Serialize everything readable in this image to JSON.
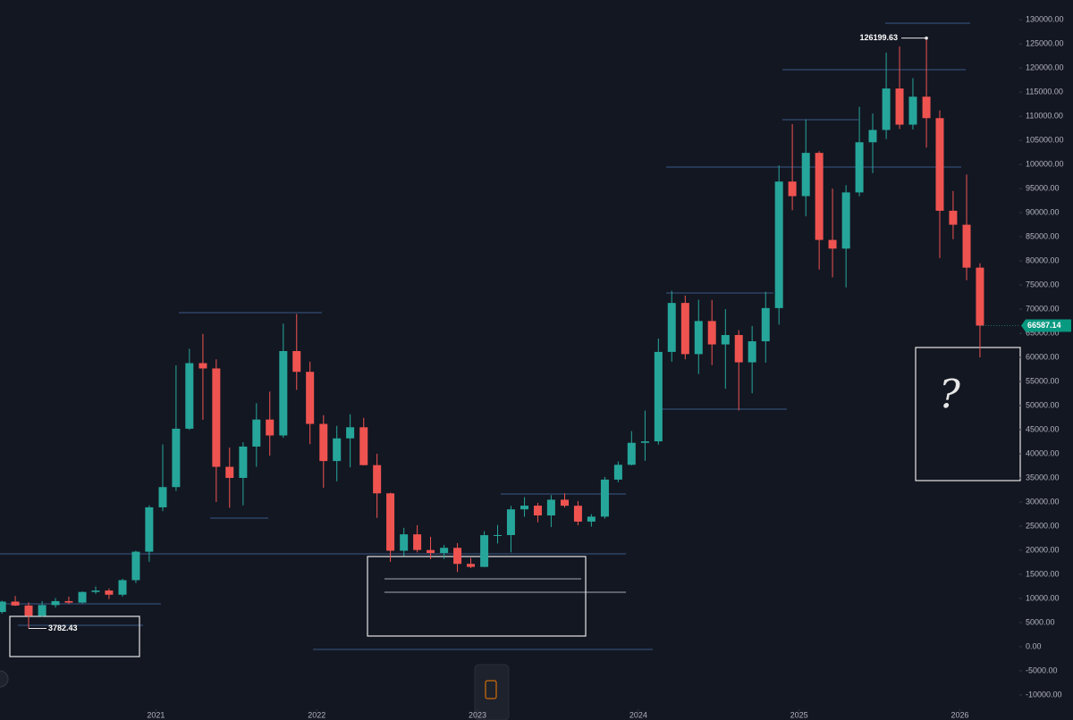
{
  "chart_data": {
    "type": "candlestick",
    "x": [
      2020.042,
      2020.125,
      2020.208,
      2020.292,
      2020.375,
      2020.458,
      2020.542,
      2020.625,
      2020.708,
      2020.792,
      2020.875,
      2020.958,
      2021.042,
      2021.125,
      2021.208,
      2021.292,
      2021.375,
      2021.458,
      2021.542,
      2021.625,
      2021.708,
      2021.792,
      2021.875,
      2021.958,
      2022.042,
      2022.125,
      2022.208,
      2022.292,
      2022.375,
      2022.458,
      2022.542,
      2022.625,
      2022.708,
      2022.792,
      2022.875,
      2022.958,
      2023.042,
      2023.125,
      2023.208,
      2023.292,
      2023.375,
      2023.458,
      2023.542,
      2023.625,
      2023.708,
      2023.792,
      2023.875,
      2023.958,
      2024.042,
      2024.125,
      2024.208,
      2024.292,
      2024.375,
      2024.458,
      2024.542,
      2024.625,
      2024.708,
      2024.792,
      2024.875,
      2024.958,
      2025.042,
      2025.125,
      2025.208,
      2025.292,
      2025.375,
      2025.458,
      2025.542,
      2025.625,
      2025.708,
      2025.792,
      2025.875,
      2025.958,
      2026.042,
      2026.125
    ],
    "open": [
      7200,
      9350,
      8540,
      6410,
      8630,
      9450,
      9140,
      11350,
      11650,
      10780,
      13800,
      19700,
      28900,
      33100,
      45200,
      58800,
      57700,
      37300,
      35000,
      41500,
      47100,
      43800,
      61300,
      57000,
      46200,
      38500,
      43200,
      45500,
      37650,
      31800,
      19900,
      23300,
      20050,
      19430,
      20500,
      17170,
      16550,
      23130,
      23150,
      28480,
      29250,
      27220,
      30480,
      29230,
      25940,
      26970,
      34650,
      37720,
      42280,
      42580,
      61130,
      71280,
      60670,
      67530,
      62680,
      64630,
      58970,
      63330,
      70220,
      96450,
      93430,
      102400,
      84350,
      82550,
      94200,
      104600,
      107150,
      115750,
      108250,
      114050,
      109600,
      90400,
      87500,
      78600
    ],
    "high": [
      9570,
      10500,
      9190,
      9460,
      10070,
      10380,
      11450,
      12480,
      12080,
      14100,
      19900,
      29300,
      41950,
      58350,
      61790,
      64850,
      59600,
      41300,
      42400,
      50500,
      52900,
      67000,
      69000,
      59100,
      48000,
      45800,
      48200,
      47450,
      40000,
      31950,
      24650,
      25200,
      22800,
      21100,
      21480,
      18400,
      23950,
      25250,
      29200,
      31000,
      29820,
      31430,
      31800,
      30200,
      27480,
      35200,
      38420,
      44700,
      48970,
      63900,
      73800,
      72800,
      71950,
      71900,
      70000,
      65650,
      66500,
      73600,
      99800,
      108350,
      109350,
      102750,
      95000,
      95700,
      111950,
      110550,
      123200,
      124450,
      117900,
      126199.63,
      111200,
      94500,
      97900,
      79500
    ],
    "low": [
      6850,
      8450,
      3782.43,
      6150,
      8110,
      8900,
      8980,
      10950,
      9880,
      10370,
      13200,
      17600,
      28100,
      32300,
      44950,
      47050,
      30000,
      28800,
      29300,
      37300,
      39600,
      43300,
      53250,
      42000,
      32950,
      34300,
      37200,
      37600,
      26700,
      17600,
      18800,
      19550,
      18150,
      18200,
      15480,
      16300,
      16500,
      21400,
      19550,
      26950,
      25810,
      24800,
      28860,
      25170,
      24900,
      26560,
      34100,
      37600,
      38550,
      41900,
      59100,
      59600,
      56550,
      58400,
      53500,
      49000,
      52550,
      58900,
      66800,
      90500,
      89250,
      78200,
      76600,
      74500,
      93400,
      98200,
      105250,
      107350,
      107250,
      103500,
      80600,
      84500,
      76000,
      60000
    ],
    "close": [
      9350,
      8540,
      6410,
      8630,
      9450,
      9140,
      11350,
      11650,
      10780,
      13800,
      19700,
      28900,
      33100,
      45200,
      58800,
      57700,
      37300,
      35000,
      41500,
      47100,
      43800,
      61300,
      57000,
      46200,
      38500,
      43200,
      45500,
      37650,
      31800,
      19900,
      23300,
      20050,
      19430,
      20500,
      17170,
      16550,
      23130,
      23150,
      28480,
      29250,
      27220,
      30480,
      29230,
      25940,
      26970,
      34650,
      37720,
      42280,
      42580,
      61130,
      71280,
      60670,
      67530,
      62680,
      64630,
      58970,
      63330,
      70220,
      96450,
      93430,
      102400,
      84350,
      82550,
      94200,
      104600,
      107150,
      115750,
      108250,
      114050,
      109600,
      90400,
      87500,
      78600,
      66587.14
    ],
    "up_color": "#26a69a",
    "down_color": "#ef5350",
    "xlim": [
      2020.03,
      2026.37
    ],
    "xticks": [
      2021,
      2022,
      2023,
      2024,
      2025,
      2026
    ],
    "ylim": [
      -15200,
      134100
    ],
    "yticks": [
      {
        "value": -10000,
        "label": "-10000.00"
      },
      {
        "value": -5000,
        "label": "-5000.00"
      },
      {
        "value": 0,
        "label": "0.00"
      },
      {
        "value": 5000,
        "label": "5000.00"
      },
      {
        "value": 10000,
        "label": "10000.00"
      },
      {
        "value": 15000,
        "label": "15000.00"
      },
      {
        "value": 20000,
        "label": "20000.00"
      },
      {
        "value": 25000,
        "label": "25000.00"
      },
      {
        "value": 30000,
        "label": "30000.00"
      },
      {
        "value": 35000,
        "label": "35000.00"
      },
      {
        "value": 40000,
        "label": "40000.00"
      },
      {
        "value": 45000,
        "label": "45000.00"
      },
      {
        "value": 50000,
        "label": "50000.00"
      },
      {
        "value": 55000,
        "label": "55000.00"
      },
      {
        "value": 60000,
        "label": "60000.00"
      },
      {
        "value": 65000,
        "label": "65000.00"
      },
      {
        "value": 70000,
        "label": "70000.00"
      },
      {
        "value": 75000,
        "label": "75000.00"
      },
      {
        "value": 80000,
        "label": "80000.00"
      },
      {
        "value": 85000,
        "label": "85000.00"
      },
      {
        "value": 90000,
        "label": "90000.00"
      },
      {
        "value": 95000,
        "label": "95000.00"
      },
      {
        "value": 100000,
        "label": "100000.00"
      },
      {
        "value": 105000,
        "label": "105000.00"
      },
      {
        "value": 110000,
        "label": "110000.00"
      },
      {
        "value": 115000,
        "label": "115000.00"
      },
      {
        "value": 120000,
        "label": "120000.00"
      },
      {
        "value": 125000,
        "label": "125000.00"
      },
      {
        "value": 130000,
        "label": "130000.00"
      }
    ],
    "high_label": "126199.63",
    "low_label": "3782.43",
    "last_price_label": "66587.14",
    "annotation": "?"
  }
}
